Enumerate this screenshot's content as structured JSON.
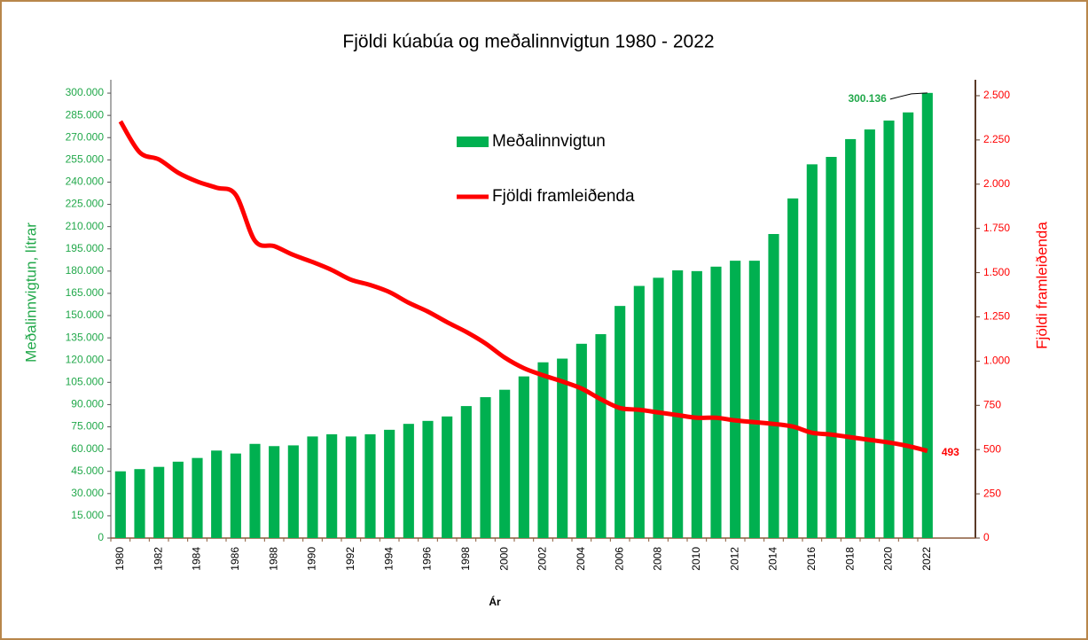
{
  "chart_data": {
    "type": "bar+line",
    "title": "Fjöldi kúabúa og meðalinnvigtun 1980 - 2022",
    "xlabel": "Ár",
    "ylabel": "Meðalinnvigtun, lítrar",
    "y2label": "Fjöldi framleiðenda",
    "legend": "top",
    "grid": false,
    "categories": [
      "1980",
      null,
      "1982",
      null,
      "1984",
      null,
      "1986",
      null,
      "1988",
      null,
      "1990",
      null,
      "1992",
      null,
      "1994",
      null,
      "1996",
      null,
      "1998",
      null,
      "2000",
      null,
      "2002",
      null,
      "2004",
      null,
      "2006",
      null,
      "2008",
      null,
      "2010",
      null,
      "2012",
      null,
      "2014",
      null,
      "2016",
      null,
      "2018",
      null,
      "2020",
      null,
      "2022"
    ],
    "series": [
      {
        "name": "Meðalinnvigtun",
        "type": "bar",
        "color": "#00b050",
        "values": [
          45000,
          46500,
          48000,
          51500,
          54000,
          59000,
          57000,
          63500,
          62000,
          62500,
          68500,
          70000,
          68500,
          70000,
          73000,
          77000,
          79000,
          82000,
          89000,
          95000,
          100000,
          109000,
          118500,
          121000,
          131000,
          137500,
          156500,
          170000,
          175500,
          180500,
          180000,
          183000,
          187000,
          187000,
          205000,
          229000,
          252000,
          257000,
          269000,
          275500,
          281500,
          287000,
          300136
        ],
        "value_labels": [
          null,
          null,
          null,
          null,
          null,
          null,
          null,
          null,
          null,
          null,
          null,
          null,
          null,
          null,
          null,
          null,
          null,
          null,
          null,
          null,
          null,
          null,
          null,
          null,
          null,
          null,
          null,
          null,
          null,
          null,
          null,
          null,
          null,
          null,
          null,
          null,
          null,
          null,
          null,
          null,
          null,
          null,
          "300.136"
        ]
      },
      {
        "name": "Fjöldi framleiðenda",
        "type": "line",
        "axis": "y2",
        "color": "#ff0000",
        "values": [
          2355,
          2180,
          2140,
          2065,
          2015,
          1980,
          1940,
          1680,
          1650,
          1600,
          1560,
          1515,
          1460,
          1430,
          1390,
          1330,
          1280,
          1220,
          1165,
          1100,
          1020,
          960,
          920,
          885,
          845,
          785,
          735,
          725,
          710,
          695,
          680,
          680,
          665,
          655,
          645,
          630,
          595,
          585,
          570,
          555,
          540,
          520,
          493
        ]
      }
    ],
    "ylim": [
      0,
      309000
    ],
    "yticks": [
      0,
      {
        "value": 15000,
        "label": "15.000"
      },
      {
        "value": 30000,
        "label": "30.000"
      },
      {
        "value": 45000,
        "label": "45.000"
      },
      {
        "value": 60000,
        "label": "60.000"
      },
      {
        "value": 75000,
        "label": "75.000"
      },
      {
        "value": 90000,
        "label": "90.000"
      },
      {
        "value": 105000,
        "label": "105.000"
      },
      {
        "value": 120000,
        "label": "120.000"
      },
      {
        "value": 135000,
        "label": "135.000"
      },
      {
        "value": 150000,
        "label": "150.000"
      },
      {
        "value": 165000,
        "label": "165.000"
      },
      {
        "value": 180000,
        "label": "180.000"
      },
      {
        "value": 195000,
        "label": "195.000"
      },
      {
        "value": 210000,
        "label": "210.000"
      },
      {
        "value": 225000,
        "label": "225.000"
      },
      {
        "value": 240000,
        "label": "240.000"
      },
      {
        "value": 255000,
        "label": "255.000"
      },
      {
        "value": 270000,
        "label": "270.000"
      },
      {
        "value": 285000,
        "label": "285.000"
      },
      {
        "value": 300000,
        "label": "300.000"
      }
    ],
    "y2lim": [
      0,
      2590
    ],
    "y2ticks": [
      0,
      250,
      500,
      750,
      {
        "value": 1000,
        "label": "1.000"
      },
      {
        "value": 1250,
        "label": "1.250"
      },
      {
        "value": 1500,
        "label": "1.500"
      },
      {
        "value": 1750,
        "label": "1.750"
      },
      {
        "value": 2000,
        "label": "2.000"
      },
      {
        "value": 2250,
        "label": "2.250"
      },
      {
        "value": 2500,
        "label": "2.500"
      }
    ]
  }
}
